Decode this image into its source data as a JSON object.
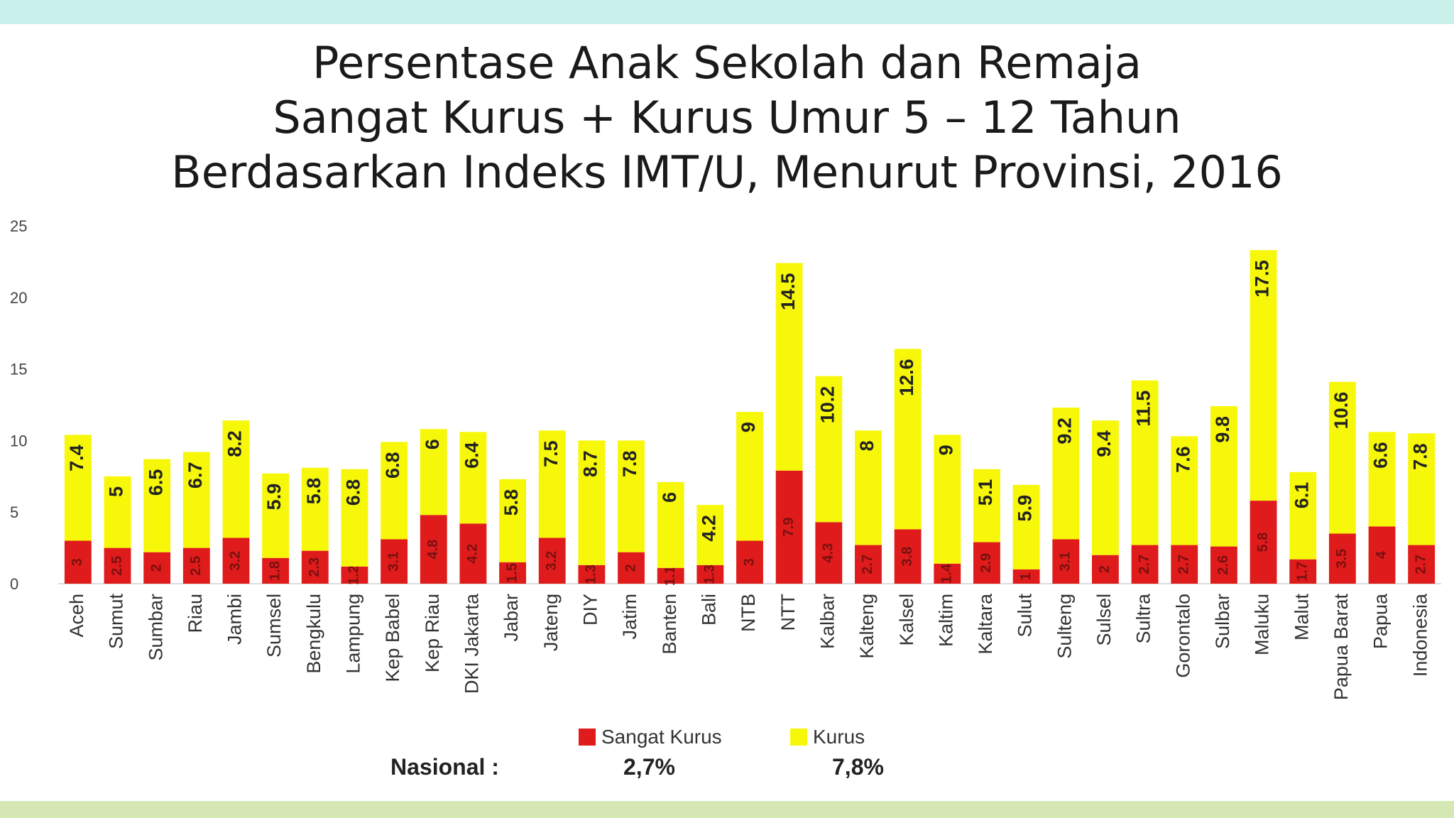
{
  "title_lines": [
    "Persentase Anak Sekolah dan Remaja",
    "Sangat Kurus + Kurus Umur 5 – 12 Tahun",
    "Berdasarkan Indeks IMT/U, Menurut Provinsi, 2016"
  ],
  "colors": {
    "sangat_kurus": "#e01b1b",
    "kurus": "#f7f70a",
    "top_band": "#c9f0ea",
    "bottom_band": "#d5e8b4"
  },
  "legend": {
    "sangat_kurus_label": "Sangat Kurus",
    "kurus_label": "Kurus"
  },
  "nasional": {
    "label": "Nasional :",
    "sangat_kurus": "2,7%",
    "kurus": "7,8%"
  },
  "chart_data": {
    "type": "bar",
    "stacked": true,
    "ylim": [
      0,
      25
    ],
    "yticks": [
      0,
      5,
      10,
      15,
      20,
      25
    ],
    "grid": false,
    "legend_position": "bottom",
    "categories": [
      "Aceh",
      "Sumut",
      "Sumbar",
      "Riau",
      "Jambi",
      "Sumsel",
      "Bengkulu",
      "Lampung",
      "Kep Babel",
      "Kep Riau",
      "DKI Jakarta",
      "Jabar",
      "Jateng",
      "DIY",
      "Jatim",
      "Banten",
      "Bali",
      "NTB",
      "NTT",
      "Kalbar",
      "Kalteng",
      "Kalsel",
      "Kaltim",
      "Kaltara",
      "Sulut",
      "Sulteng",
      "Sulsel",
      "Sultra",
      "Gorontalo",
      "Sulbar",
      "Maluku",
      "Malut",
      "Papua Barat",
      "Papua",
      "Indonesia"
    ],
    "series": [
      {
        "name": "Sangat Kurus",
        "values": [
          3.0,
          2.5,
          2.2,
          2.5,
          3.2,
          1.8,
          2.3,
          1.2,
          3.1,
          4.8,
          4.2,
          1.5,
          3.2,
          1.3,
          2.2,
          1.1,
          1.3,
          3.0,
          7.9,
          4.3,
          2.7,
          3.8,
          1.4,
          2.9,
          1.0,
          3.1,
          2.0,
          2.7,
          2.7,
          2.6,
          5.8,
          1.7,
          3.5,
          4.0,
          2.7
        ],
        "labels": [
          "3",
          "2.5",
          "2",
          "2.5",
          "3.2",
          "1.8",
          "2.3",
          "1.2",
          "3.1",
          "4.8",
          "4.2",
          "1.5",
          "3.2",
          "1.3",
          "2",
          "1.1",
          "1.3",
          "3",
          "7.9",
          "4.3",
          "2.7",
          "3.8",
          "1.4",
          "2.9",
          "1",
          "3.1",
          "2",
          "2.7",
          "2.7",
          "2.6",
          "5.8",
          "1.7",
          "3.5",
          "4",
          "2.7"
        ]
      },
      {
        "name": "Kurus",
        "values": [
          7.4,
          5,
          6.5,
          6.7,
          8.2,
          5.9,
          5.8,
          6.8,
          6.8,
          6,
          6.4,
          5.8,
          7.5,
          8.7,
          7.8,
          6,
          4.2,
          9,
          14.5,
          10.2,
          8,
          12.6,
          9,
          5.1,
          5.9,
          9.2,
          9.4,
          11.5,
          7.6,
          9.8,
          17.5,
          6.1,
          10.6,
          6.6,
          7.8
        ],
        "labels": [
          "7.4",
          "5",
          "6.5",
          "6.7",
          "8.2",
          "5.9",
          "5.8",
          "6.8",
          "6.8",
          "6",
          "6.4",
          "5.8",
          "7.5",
          "8.7",
          "7.8",
          "6",
          "4.2",
          "9",
          "14.5",
          "10.2",
          "8",
          "12.6",
          "9",
          "5.1",
          "5.9",
          "9.2",
          "9.4",
          "11.5",
          "7.6",
          "9.8",
          "17.5",
          "6.1",
          "10.6",
          "6.6",
          "7.8"
        ]
      }
    ]
  }
}
